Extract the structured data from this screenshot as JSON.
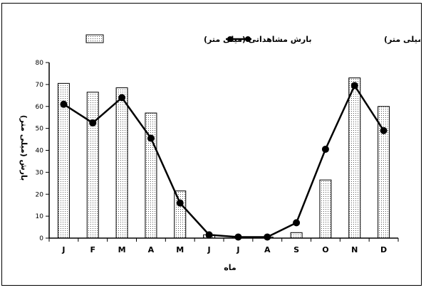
{
  "chart_data": {
    "type": "bar",
    "categories": [
      "J",
      "F",
      "M",
      "A",
      "M",
      "J",
      "J",
      "A",
      "S",
      "O",
      "N",
      "D"
    ],
    "series": [
      {
        "name": "بارش مشاهداتی (میلی متر)",
        "type": "bar",
        "values": [
          70.5,
          66.5,
          68.5,
          57,
          21.5,
          1.5,
          0.5,
          0.5,
          2.5,
          26.5,
          73,
          60
        ]
      },
      {
        "name": "بارش شبیه سازی شده (میلی متر)",
        "type": "line",
        "values": [
          61,
          52.5,
          64,
          45.5,
          16,
          1.5,
          0.5,
          0.5,
          7,
          40.5,
          69.5,
          49
        ]
      }
    ],
    "xlabel": "ماه",
    "ylabel": "بارش (میلی متر)",
    "ylim": [
      0,
      80
    ],
    "yticks": [
      0,
      10,
      20,
      30,
      40,
      50,
      60,
      70,
      80
    ],
    "grid": false,
    "legend_position": "top",
    "colors": {
      "bar_fill": "#ffffff",
      "bar_dots": "#555555",
      "line": "#000000"
    }
  }
}
